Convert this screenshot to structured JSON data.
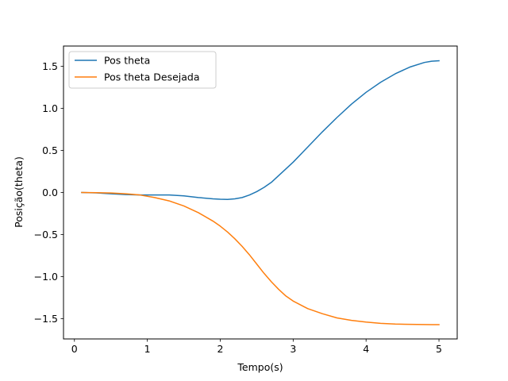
{
  "chart_data": {
    "type": "line",
    "title": "",
    "xlabel": "Tempo(s)",
    "ylabel": "Posição(theta)",
    "xlim": [
      -0.15,
      5.25
    ],
    "ylim": [
      -1.74,
      1.74
    ],
    "xticks": [
      0,
      1,
      2,
      3,
      4,
      5
    ],
    "xtick_labels": [
      "0",
      "1",
      "2",
      "3",
      "4",
      "5"
    ],
    "yticks": [
      -1.5,
      -1.0,
      -0.5,
      0.0,
      0.5,
      1.0,
      1.5
    ],
    "ytick_labels": [
      "−1.5",
      "−1.0",
      "−0.5",
      "0.0",
      "0.5",
      "1.0",
      "1.5"
    ],
    "grid": false,
    "legend_position": "upper-left",
    "series": [
      {
        "name": "Pos theta",
        "color": "#1f77b4",
        "x": [
          0.1,
          0.3,
          0.5,
          0.7,
          0.9,
          1.1,
          1.3,
          1.5,
          1.7,
          1.9,
          2.0,
          2.1,
          2.2,
          2.3,
          2.4,
          2.5,
          2.6,
          2.7,
          2.8,
          2.9,
          3.0,
          3.2,
          3.4,
          3.6,
          3.8,
          4.0,
          4.2,
          4.4,
          4.6,
          4.8,
          4.9,
          5.0
        ],
        "y": [
          0.0,
          -0.005,
          -0.015,
          -0.025,
          -0.03,
          -0.03,
          -0.03,
          -0.04,
          -0.06,
          -0.075,
          -0.08,
          -0.082,
          -0.075,
          -0.06,
          -0.03,
          0.01,
          0.06,
          0.12,
          0.2,
          0.28,
          0.36,
          0.54,
          0.72,
          0.89,
          1.05,
          1.19,
          1.31,
          1.41,
          1.49,
          1.545,
          1.56,
          1.565
        ]
      },
      {
        "name": "Pos theta Desejada",
        "color": "#ff7f0e",
        "x": [
          0.1,
          0.3,
          0.5,
          0.7,
          0.9,
          1.1,
          1.3,
          1.5,
          1.7,
          1.9,
          2.0,
          2.1,
          2.2,
          2.3,
          2.4,
          2.5,
          2.6,
          2.7,
          2.8,
          2.9,
          3.0,
          3.2,
          3.4,
          3.6,
          3.8,
          4.0,
          4.2,
          4.4,
          4.6,
          4.8,
          4.9,
          5.0
        ],
        "y": [
          0.0,
          -0.002,
          -0.006,
          -0.015,
          -0.03,
          -0.06,
          -0.1,
          -0.16,
          -0.24,
          -0.34,
          -0.4,
          -0.47,
          -0.55,
          -0.64,
          -0.74,
          -0.85,
          -0.96,
          -1.06,
          -1.15,
          -1.23,
          -1.29,
          -1.38,
          -1.44,
          -1.49,
          -1.52,
          -1.54,
          -1.555,
          -1.563,
          -1.567,
          -1.569,
          -1.57,
          -1.57
        ]
      }
    ]
  }
}
